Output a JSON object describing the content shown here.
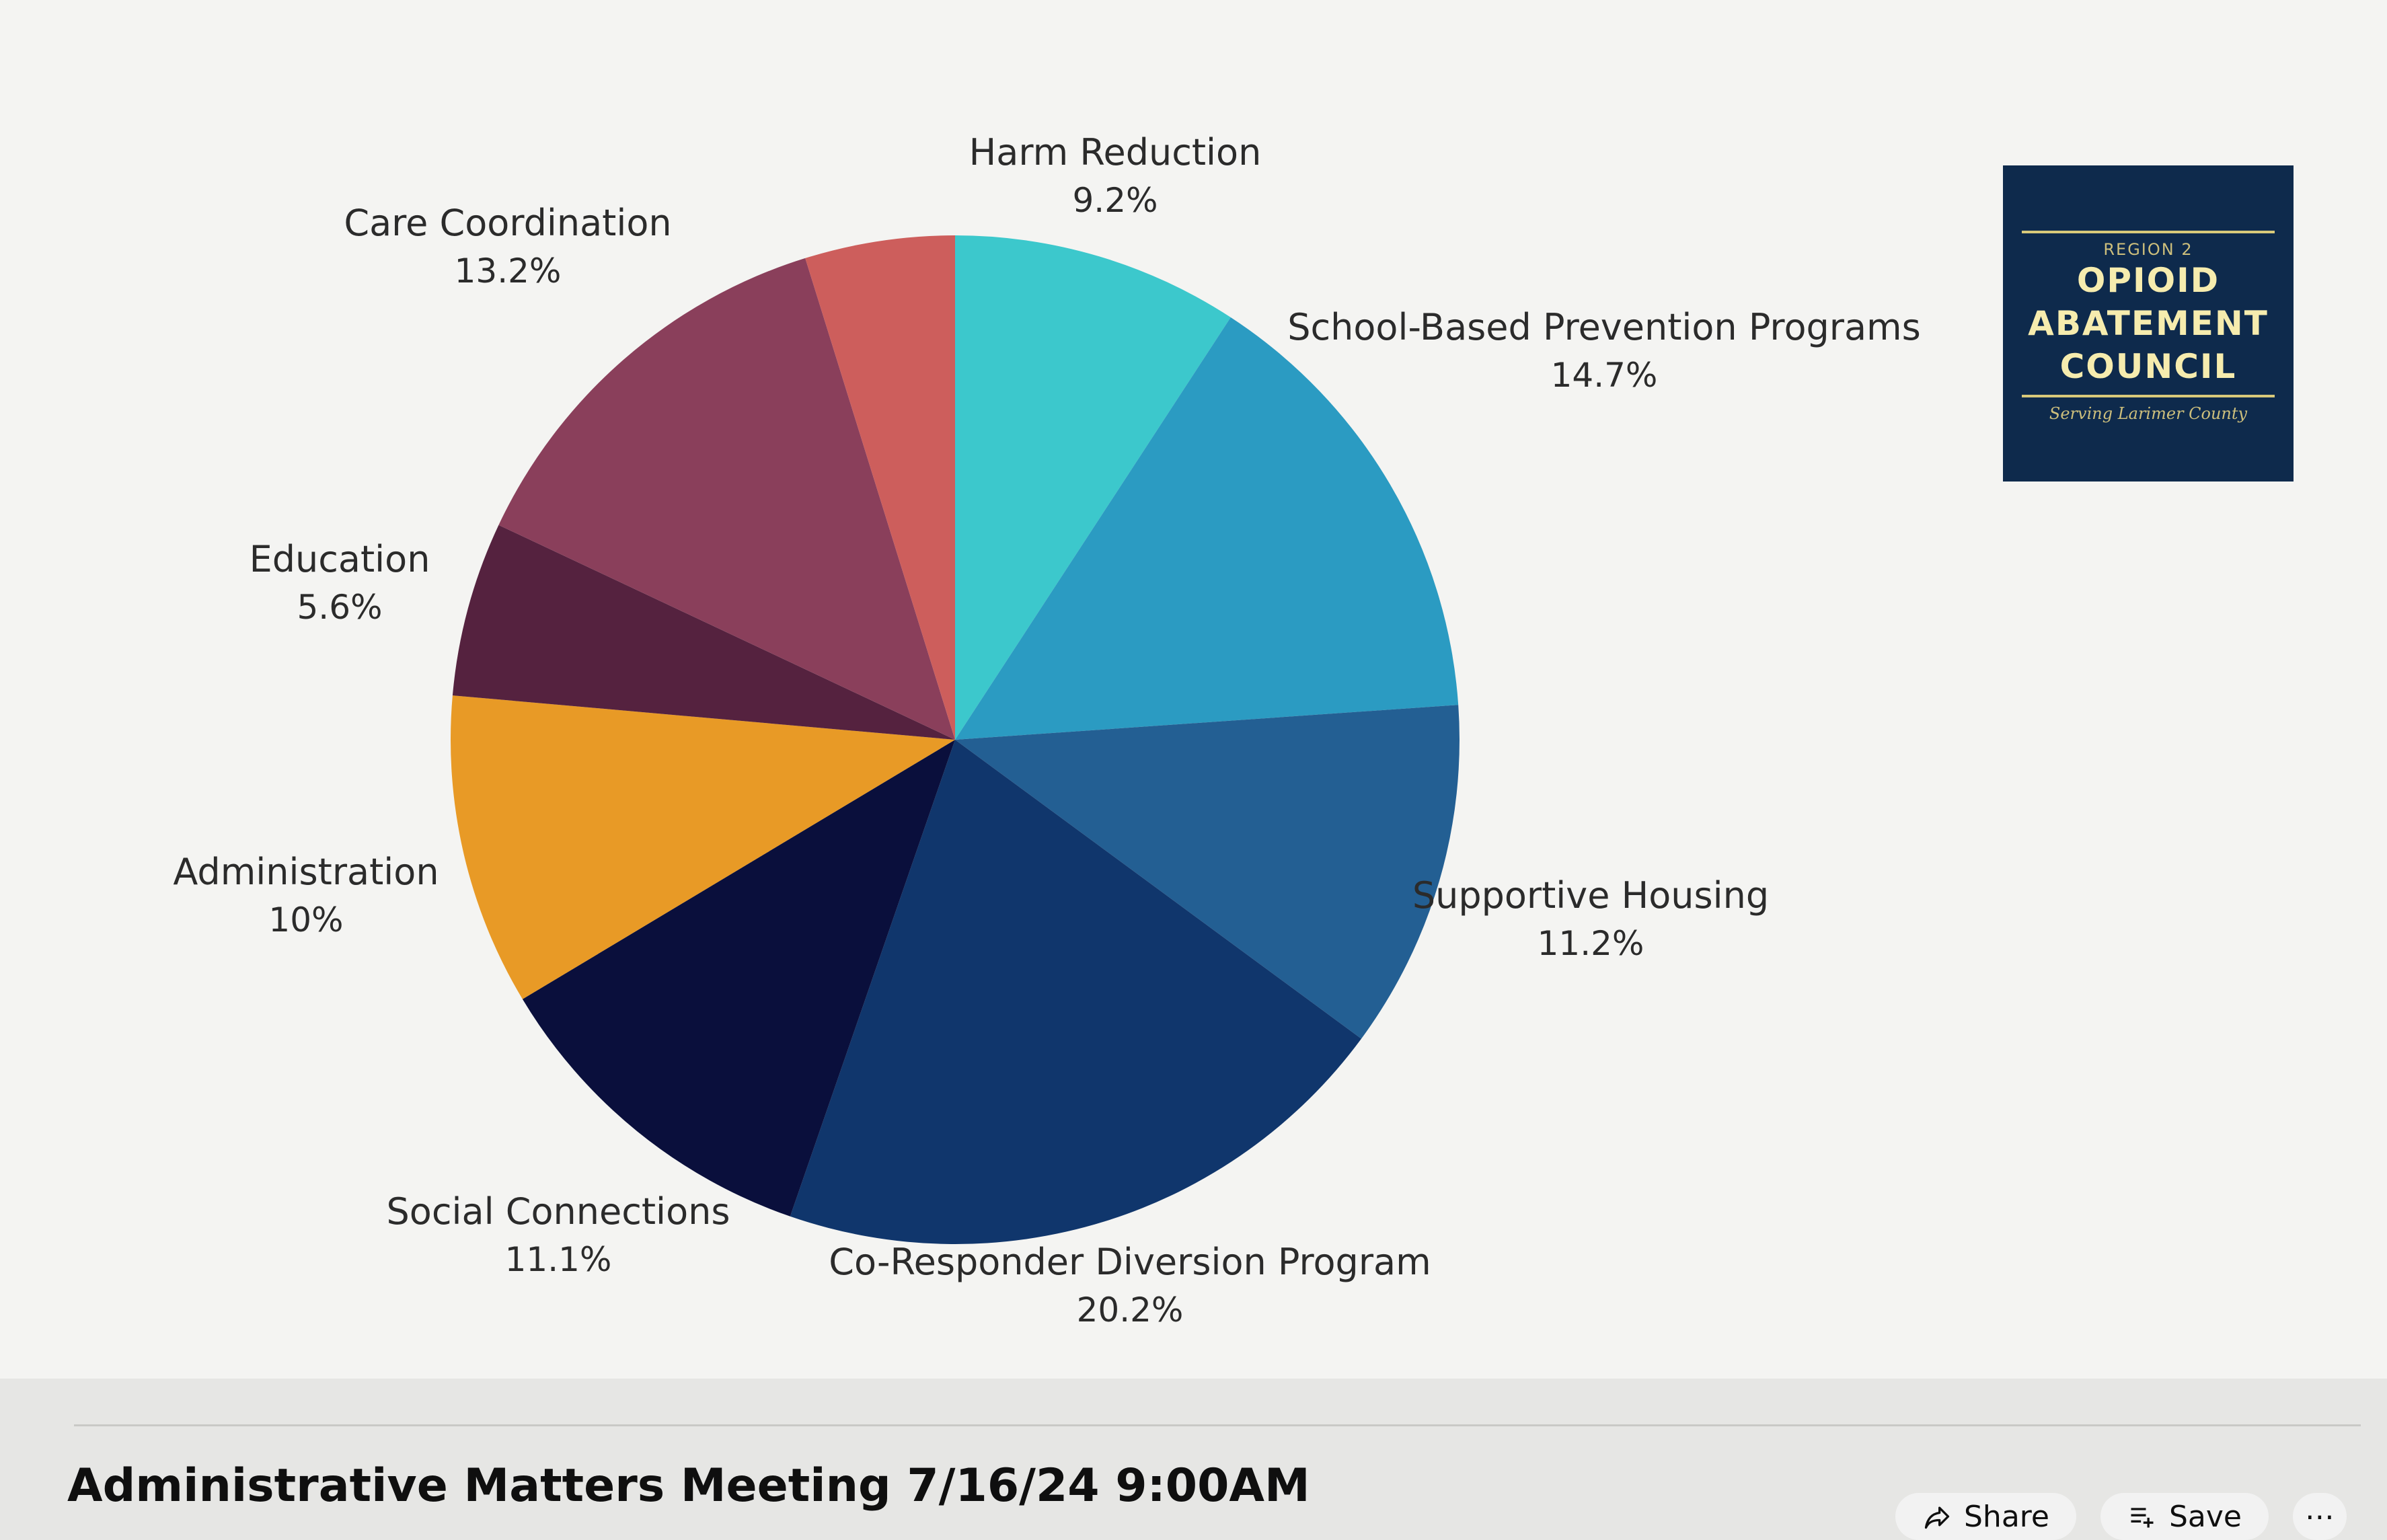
{
  "chart_data": {
    "type": "pie",
    "slices": [
      {
        "label": "Harm Reduction",
        "value": 9.2,
        "pct_label": "9.2%",
        "color": "#3cc8cc"
      },
      {
        "label": "School-Based Prevention Programs",
        "value": 14.7,
        "pct_label": "14.7%",
        "color": "#2b9bc2"
      },
      {
        "label": "Supportive Housing",
        "value": 11.2,
        "pct_label": "11.2%",
        "color": "#235f93"
      },
      {
        "label": "Co-Responder Diversion Program",
        "value": 20.2,
        "pct_label": "20.2%",
        "color": "#10366c"
      },
      {
        "label": "Social Connections",
        "value": 11.1,
        "pct_label": "11.1%",
        "color": "#0a0f3c"
      },
      {
        "label": "Administration",
        "value": 10,
        "pct_label": "10%",
        "color": "#e89a26"
      },
      {
        "label": "Education",
        "value": 5.6,
        "pct_label": "5.6%",
        "color": "#55223f"
      },
      {
        "label": "Care Coordination",
        "value": 13.2,
        "pct_label": "13.2%",
        "color": "#8a3f5b"
      },
      {
        "label": "",
        "value": 4.8,
        "pct_label": "",
        "color": "#cd5e5c"
      }
    ]
  },
  "logo": {
    "region": "REGION 2",
    "line1": "OPIOID",
    "line2": "ABATEMENT",
    "line3": "COUNCIL",
    "tagline": "Serving Larimer County"
  },
  "video": {
    "title": "Administrative Matters Meeting 7/16/24 9:00AM"
  },
  "actions": {
    "share_label": "Share",
    "save_label": "Save",
    "more_label": "⋯",
    "share_icon": "share-icon",
    "save_icon": "save-playlist-icon"
  }
}
